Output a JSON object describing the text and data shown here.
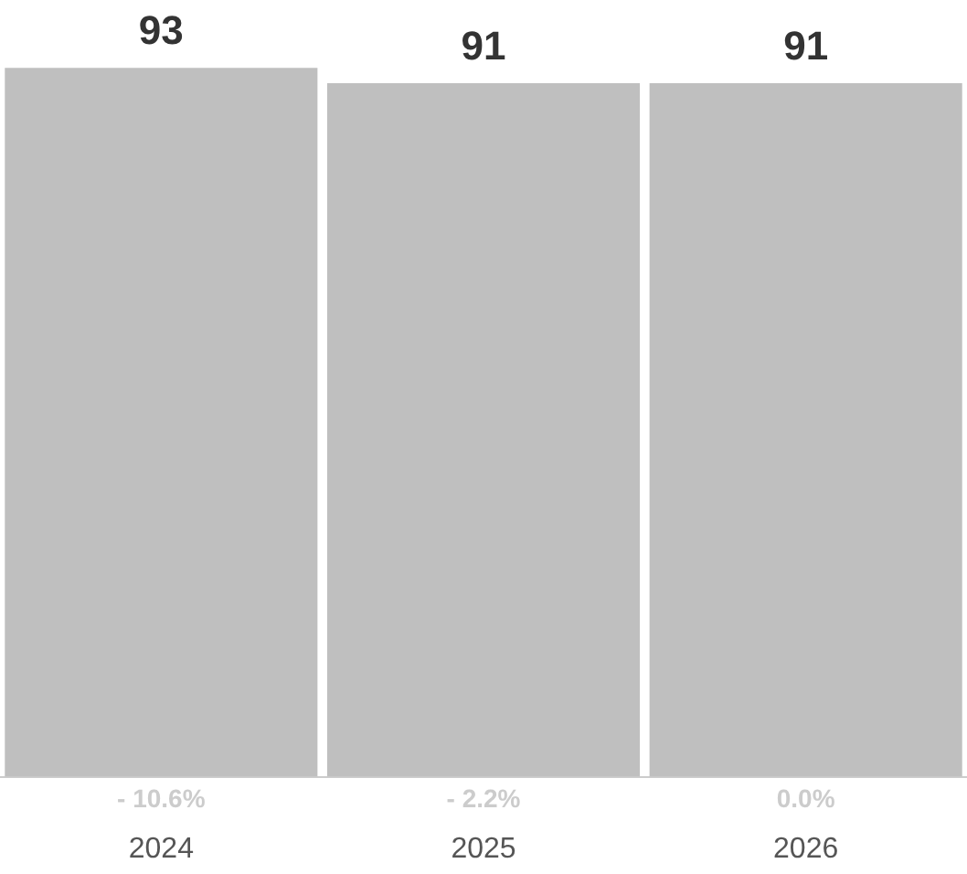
{
  "chart_data": {
    "type": "bar",
    "categories": [
      "2024",
      "2025",
      "2026"
    ],
    "values": [
      93,
      91,
      91
    ],
    "color": "#bfbfbf",
    "data_labels": true,
    "grid": false,
    "legend": false,
    "annotations": [
      "- 10.6%",
      "- 2.2%",
      "0.0%"
    ]
  }
}
